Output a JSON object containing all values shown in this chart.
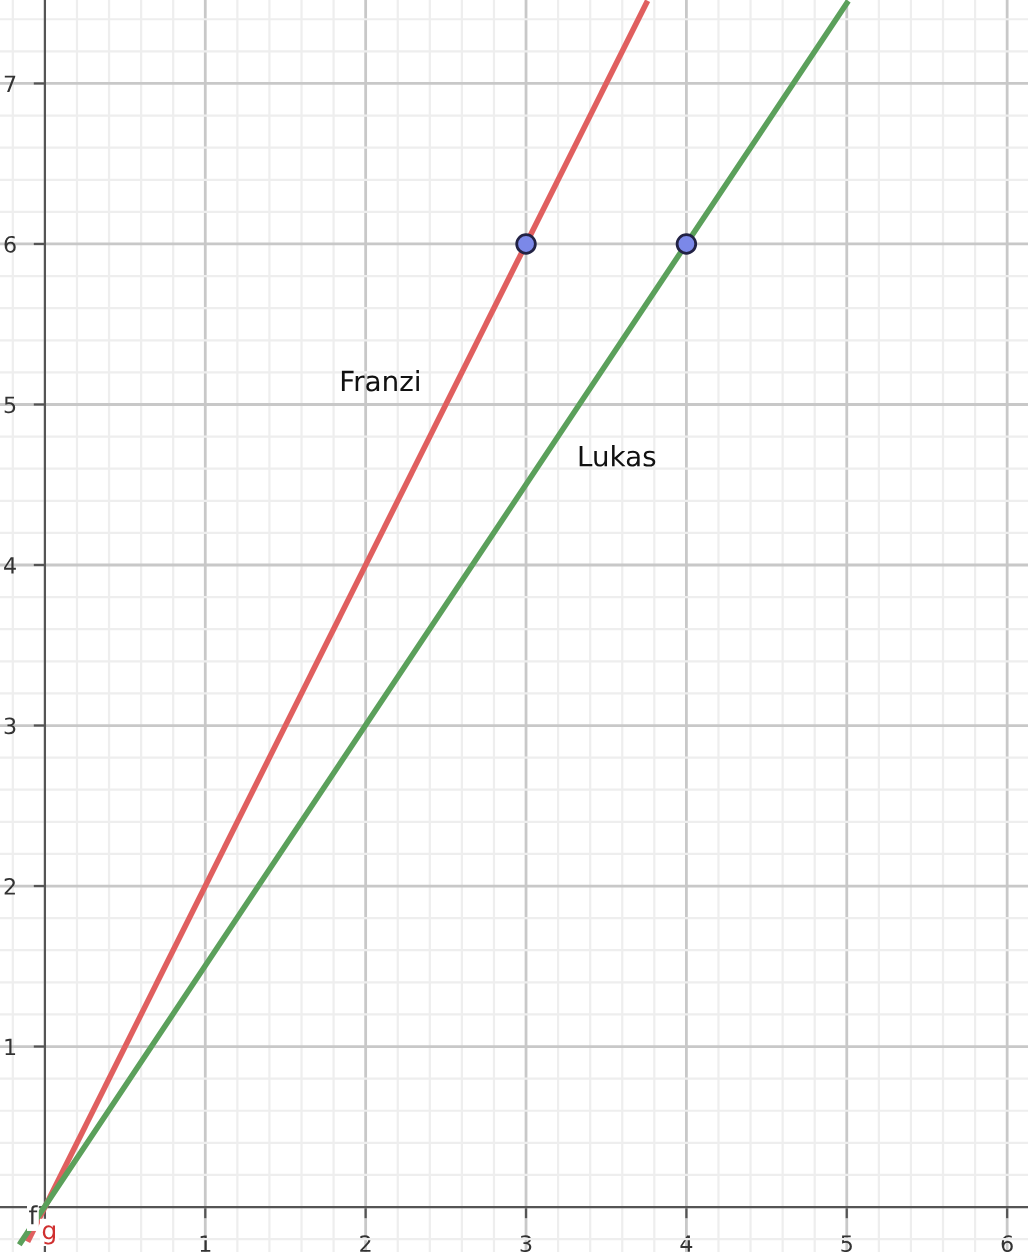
{
  "chart_data": {
    "type": "line",
    "xlim": [
      -0.28,
      6.13
    ],
    "ylim": [
      -0.28,
      7.52
    ],
    "xticks": [
      1,
      2,
      3,
      4,
      5,
      6
    ],
    "yticks": [
      1,
      2,
      3,
      4,
      5,
      6,
      7
    ],
    "grid": true,
    "line_style": "solid",
    "series": [
      {
        "color": "#e05f5f",
        "x": [
          -0.1,
          3.75
        ],
        "values": [
          -0.2,
          7.5
        ]
      },
      {
        "color": "#5ba05b",
        "x": [
          -0.15,
          5
        ],
        "values": [
          -0.22,
          7.5
        ]
      },
      {
        "type": "scatter",
        "marker": "circle",
        "color": "#7b88e8",
        "x": [
          3,
          4
        ],
        "values": [
          6,
          6
        ]
      }
    ],
    "annotations": [
      "Franzi",
      "Lukas",
      "f",
      "g"
    ]
  }
}
